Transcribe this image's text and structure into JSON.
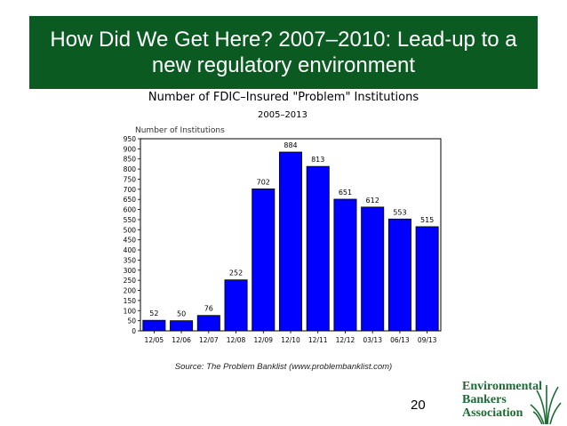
{
  "slide": {
    "title": "How Did We Get Here? 2007–2010: Lead-up to a\nnew regulatory environment",
    "source": "Source: The Problem Banklist (www.problembanklist.com)",
    "page_number": "20",
    "logo_lines": [
      "Environmental",
      "Bankers",
      "Association"
    ],
    "colors": {
      "title_bg": "#0b5a22",
      "bar": "#0000ff",
      "logo": "#1c6b34"
    }
  },
  "chart_data": {
    "type": "bar",
    "title": "Number of FDIC–Insured \"Problem\" Institutions",
    "subtitle": "2005–2013",
    "ylabel": "Number of Institutions",
    "xlabel": "",
    "categories": [
      "12/05",
      "12/06",
      "12/07",
      "12/08",
      "12/09",
      "12/10",
      "12/11",
      "12/12",
      "03/13",
      "06/13",
      "09/13"
    ],
    "values": [
      52,
      50,
      76,
      252,
      702,
      884,
      813,
      651,
      612,
      553,
      515
    ],
    "ylim": [
      0,
      950
    ],
    "yticks": [
      0,
      50,
      100,
      150,
      200,
      250,
      300,
      350,
      400,
      450,
      500,
      550,
      600,
      650,
      700,
      750,
      800,
      850,
      900,
      950
    ],
    "grid": false,
    "legend": "none",
    "data_labels": true
  }
}
